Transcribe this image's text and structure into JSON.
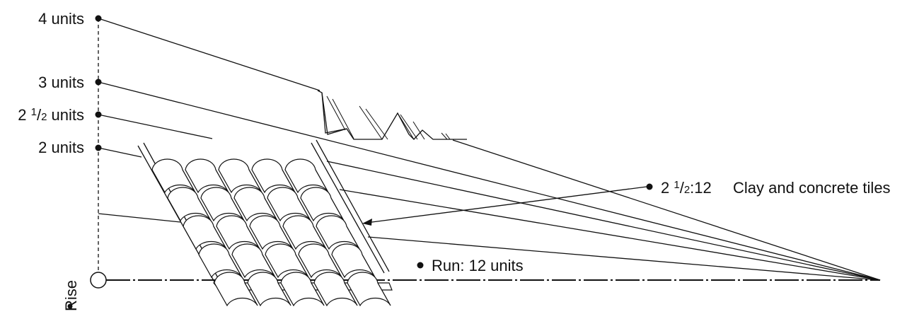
{
  "rise_marks": [
    {
      "label": "4 units"
    },
    {
      "label": "3 units"
    },
    {
      "label_whole": "2 ",
      "label_num": "1",
      "label_den": "2",
      "label_suffix": " units"
    },
    {
      "label": "2 units"
    }
  ],
  "slope_callout": {
    "whole": "2 ",
    "num": "1",
    "den": "2",
    "suffix": ":12"
  },
  "material": "Clay and concrete tiles",
  "run_label": "Run: 12 units",
  "rise_label": "Rise"
}
